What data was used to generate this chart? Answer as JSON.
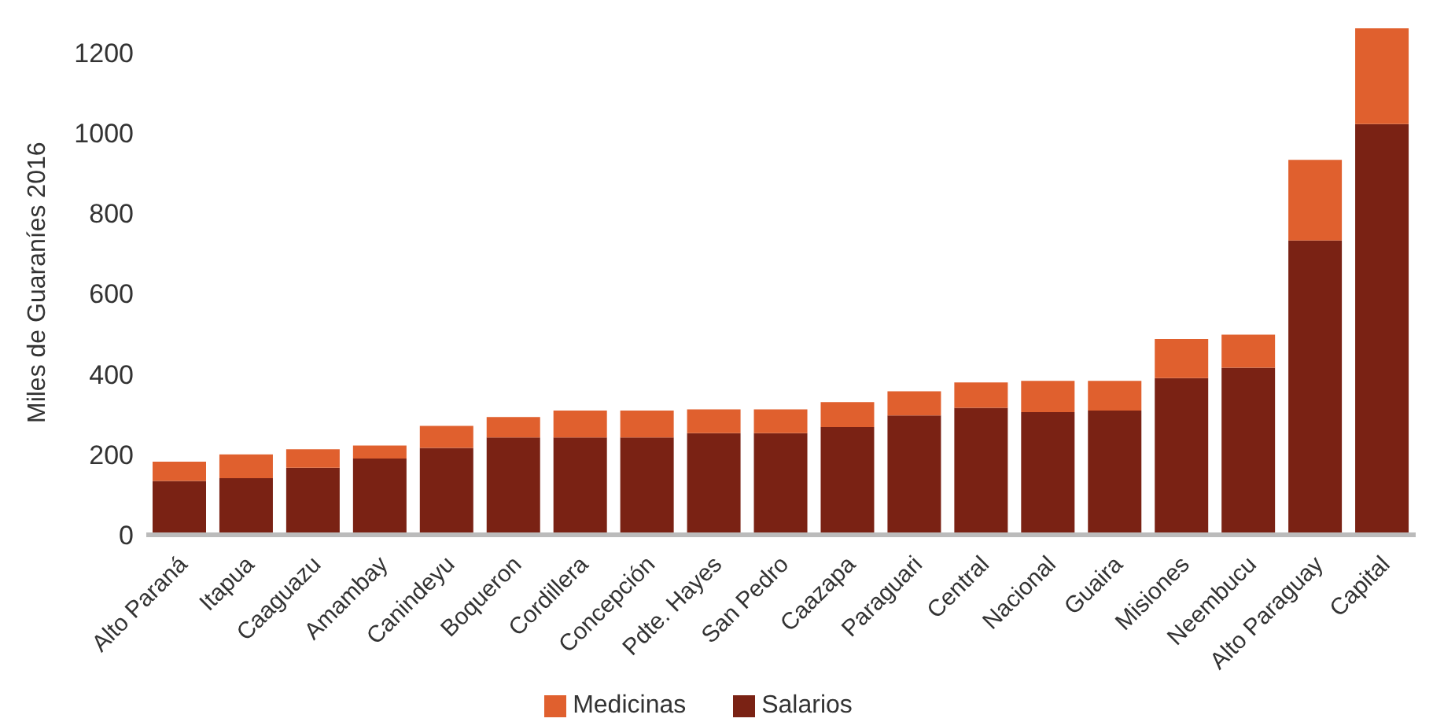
{
  "chart_data": {
    "type": "bar",
    "stacked": true,
    "ylabel": "Miles de Guaraníes 2016",
    "categories": [
      "Alto Paraná",
      "Itapua",
      "Caaguazu",
      "Amambay",
      "Canindeyu",
      "Boqueron",
      "Cordillera",
      "Concepción",
      "Pdte. Hayes",
      "San Pedro",
      "Caazapa",
      "Paraguari",
      "Central",
      "Nacional",
      "Guaira",
      "Misiones",
      "Neembucu",
      "Alto Paraguay",
      "Capital"
    ],
    "series": [
      {
        "name": "Salarios",
        "color": "#7a2214",
        "values": [
          134,
          141,
          167,
          190,
          216,
          242,
          242,
          242,
          253,
          253,
          268,
          297,
          316,
          305,
          309,
          390,
          416,
          732,
          1022
        ]
      },
      {
        "name": "Medicinas",
        "color": "#e0602e",
        "values": [
          48,
          59,
          46,
          32,
          55,
          51,
          67,
          67,
          59,
          59,
          62,
          60,
          63,
          78,
          74,
          97,
          82,
          201,
          238
        ]
      }
    ],
    "ylim": [
      0,
      1260
    ],
    "yticks": [
      0,
      200,
      400,
      600,
      800,
      1000,
      1200
    ],
    "grid": false,
    "legend": "bottom"
  }
}
